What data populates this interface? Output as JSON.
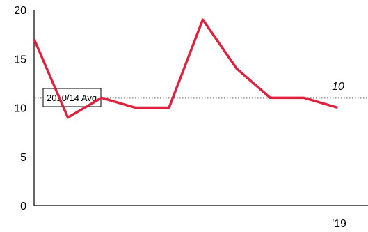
{
  "chart_data": {
    "type": "line",
    "ylim": [
      0,
      20
    ],
    "yticks": [
      0,
      5,
      10,
      15,
      20
    ],
    "x_tick_labels": [
      {
        "index": 9,
        "label": "'19"
      }
    ],
    "series": [
      {
        "values": [
          17,
          9,
          11,
          10,
          10,
          19,
          14,
          11,
          11,
          10
        ],
        "color": "#e0203c"
      }
    ],
    "reference_line": {
      "label": "2010/14 Avg",
      "value": 11,
      "style": "dotted",
      "color": "#000000"
    },
    "last_value_label": "10",
    "grid": false
  }
}
